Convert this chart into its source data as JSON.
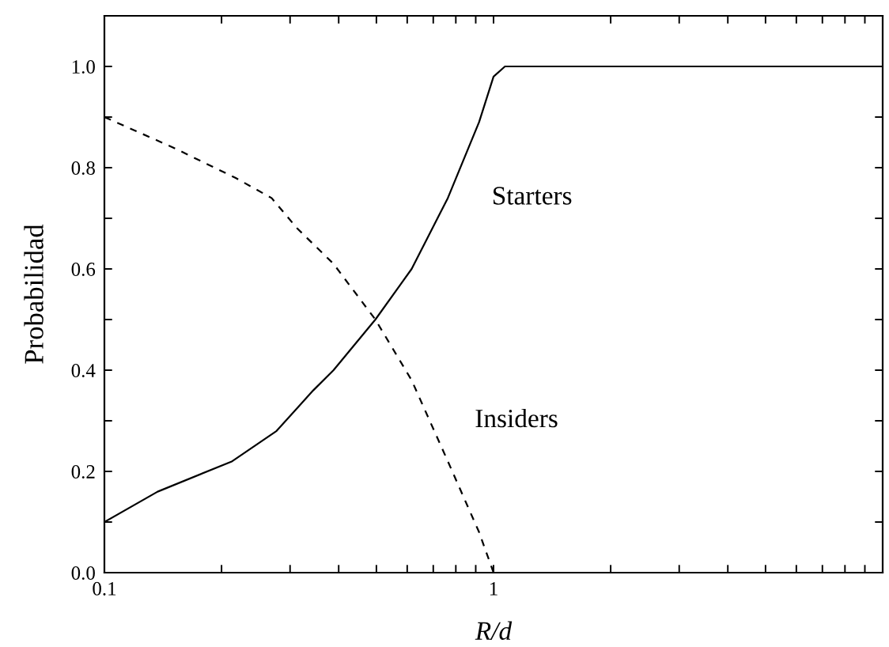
{
  "chart_data": {
    "type": "line",
    "xlabel": "R/d",
    "ylabel": "Probabilidad",
    "log": "x",
    "xlim": [
      0.1,
      10
    ],
    "ylim": [
      0,
      1.1
    ],
    "xticks": [
      0.1,
      {
        "value": 0.2,
        "label": null
      },
      {
        "value": 0.3,
        "label": null
      },
      {
        "value": 0.4,
        "label": null
      },
      {
        "value": 0.5,
        "label": null
      },
      {
        "value": 0.6,
        "label": null
      },
      {
        "value": 0.7,
        "label": null
      },
      {
        "value": 0.8,
        "label": null
      },
      {
        "value": 0.9,
        "label": null
      },
      1,
      {
        "value": 2,
        "label": null
      },
      {
        "value": 3,
        "label": null
      },
      {
        "value": 4,
        "label": null
      },
      {
        "value": 5,
        "label": null
      },
      {
        "value": 6,
        "label": null
      },
      {
        "value": 7,
        "label": null
      },
      {
        "value": 8,
        "label": null
      },
      {
        "value": 9,
        "label": null
      }
    ],
    "yticks": [
      {
        "value": 0,
        "label": "0.0"
      },
      {
        "value": 0.1,
        "label": null
      },
      0.2,
      {
        "value": 0.3,
        "label": null
      },
      0.4,
      {
        "value": 0.5,
        "label": null
      },
      0.6,
      {
        "value": 0.7,
        "label": null
      },
      0.8,
      {
        "value": 0.9,
        "label": null
      },
      {
        "value": 1,
        "label": "1.0"
      }
    ],
    "grid": false,
    "legend": false,
    "series": [
      {
        "color": "#000000",
        "line_style": "solid",
        "x": [
          0.1,
          0.137,
          0.213,
          0.277,
          0.344,
          0.388,
          0.497,
          0.616,
          0.763,
          0.918,
          1.0,
          1.07,
          10
        ],
        "values": [
          0.1,
          0.16,
          0.22,
          0.28,
          0.36,
          0.4,
          0.5,
          0.6,
          0.74,
          0.89,
          0.98,
          1.0,
          1.0
        ]
      },
      {
        "color": "#000000",
        "line_style": "dashed",
        "x": [
          0.1,
          0.15,
          0.217,
          0.269,
          0.313,
          0.388,
          0.497,
          0.616,
          0.763,
          0.918,
          1.0
        ],
        "values": [
          0.9,
          0.84,
          0.78,
          0.74,
          0.68,
          0.61,
          0.5,
          0.38,
          0.22,
          0.08,
          0.0
        ]
      }
    ],
    "annotations": [
      {
        "text": "Starters",
        "x": 0.763,
        "y": 0.74
      },
      {
        "text": "Insiders",
        "x": 0.69,
        "y": 0.3
      }
    ]
  }
}
